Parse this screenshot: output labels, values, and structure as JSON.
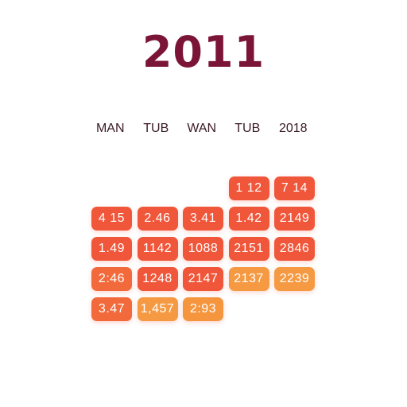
{
  "title": "2011",
  "headers": [
    "MAN",
    "TUB",
    "WAN",
    "TUB",
    "2018"
  ],
  "rows": [
    [
      null,
      null,
      null,
      {
        "value": "1 12",
        "color": "#f0563a"
      },
      {
        "value": "7 14",
        "color": "#f0563a"
      }
    ],
    [
      {
        "value": "4 15",
        "color": "#f0563a"
      },
      {
        "value": "2.46",
        "color": "#f0563a"
      },
      {
        "value": "3.41",
        "color": "#f0563a"
      },
      {
        "value": "1.42",
        "color": "#f0563a"
      },
      {
        "value": "2149",
        "color": "#f0563a"
      }
    ],
    [
      {
        "value": "1.49",
        "color": "#f0563a"
      },
      {
        "value": "1142",
        "color": "#f0563a"
      },
      {
        "value": "1088",
        "color": "#f0563a"
      },
      {
        "value": "2151",
        "color": "#f0563a"
      },
      {
        "value": "2846",
        "color": "#f0563a"
      }
    ],
    [
      {
        "value": "2:46",
        "color": "#f26a3b"
      },
      {
        "value": "1248",
        "color": "#f0563a"
      },
      {
        "value": "2147",
        "color": "#f0563a"
      },
      {
        "value": "2137",
        "color": "#f59a42"
      },
      {
        "value": "2239",
        "color": "#f59a42"
      }
    ],
    [
      {
        "value": "3.47",
        "color": "#f26a3b"
      },
      {
        "value": "1,457",
        "color": "#f59a42"
      },
      {
        "value": "2:93",
        "color": "#f5963f"
      },
      null,
      null
    ]
  ]
}
